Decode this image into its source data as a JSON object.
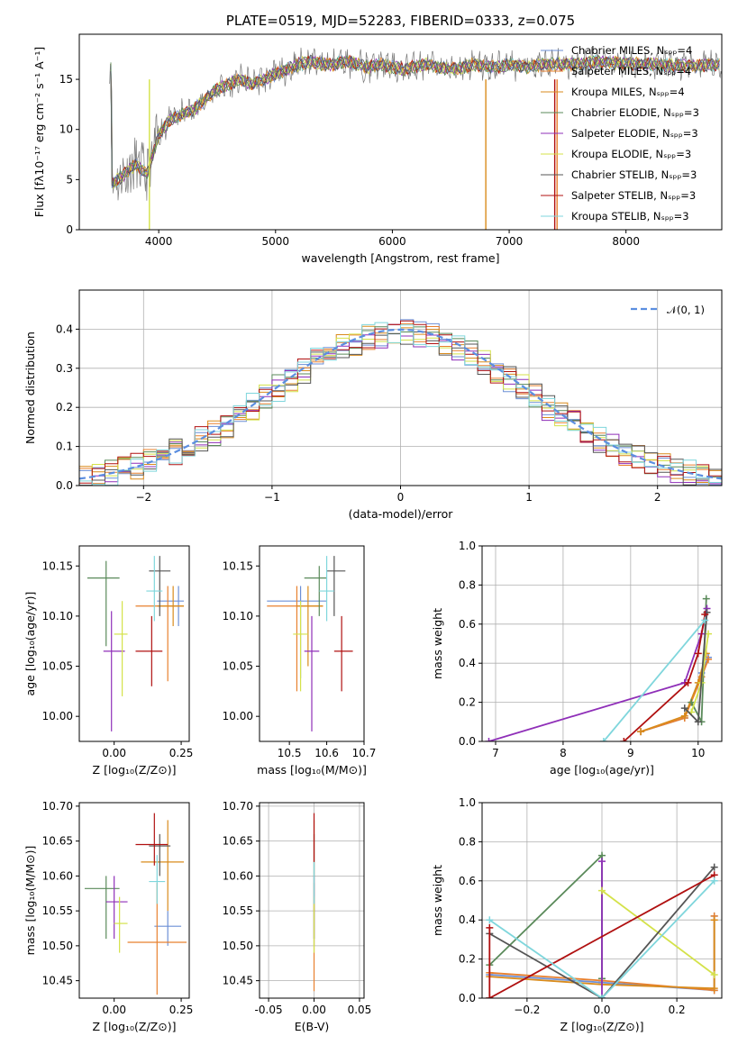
{
  "figure_title": "PLATE=0519, MJD=52283, FIBERID=0333, z=0.075",
  "model_colors": [
    "#6c8fd6",
    "#e8802e",
    "#d98b1c",
    "#5a8a5a",
    "#8f2fb8",
    "#d4e24a",
    "#555555",
    "#b01010",
    "#7fd6dc"
  ],
  "chart_data": [
    {
      "id": "spectrum",
      "type": "line",
      "title": "PLATE=0519, MJD=52283, FIBERID=0333, z=0.075",
      "xlabel": "wavelength [Angstrom, rest frame]",
      "ylabel": "Flux [fλ10⁻¹⁷ erg cm⁻² s⁻¹ A⁻¹]",
      "xlim": [
        3320,
        8820
      ],
      "ylim": [
        0,
        19.5
      ],
      "xticks": [
        4000,
        5000,
        6000,
        7000,
        8000
      ],
      "yticks": [
        0,
        5,
        10,
        15
      ],
      "grid": false,
      "legend_position": "right",
      "wavelength": [
        3600,
        3700,
        3800,
        3900,
        4000,
        4100,
        4200,
        4300,
        4400,
        4500,
        4600,
        4700,
        4800,
        4900,
        5000,
        5100,
        5200,
        5300,
        5400,
        5500,
        5600,
        5700,
        5800,
        5900,
        6000,
        6100,
        6200,
        6300,
        6400,
        6500,
        6600,
        6700,
        6800,
        6900,
        7000,
        7100,
        7200,
        7300,
        7400,
        7600,
        7800,
        8000,
        8200,
        8400,
        8600,
        8800
      ],
      "flux": [
        4.5,
        5.5,
        6.5,
        5.5,
        9.5,
        11,
        11.5,
        12,
        13,
        14,
        14.5,
        15,
        14.5,
        15,
        15.5,
        16,
        16.5,
        16.8,
        16.5,
        16.5,
        16.8,
        16.5,
        16.2,
        16.5,
        16.2,
        16,
        16.3,
        16.5,
        16.2,
        16,
        16.2,
        16.5,
        16.3,
        16.2,
        16.5,
        16.3,
        16.2,
        16.5,
        16.5,
        16.5,
        16.8,
        16.6,
        16.5,
        16.4,
        16.3,
        16.5
      ],
      "series": [
        {
          "name": "Chabrier MILES, Nₛₚₚ=4"
        },
        {
          "name": "Salpeter MILES, Nₛₚₚ=4"
        },
        {
          "name": "Kroupa MILES, Nₛₚₚ=4"
        },
        {
          "name": "Chabrier ELODIE, Nₛₚₚ=3"
        },
        {
          "name": "Salpeter ELODIE, Nₛₚₚ=3"
        },
        {
          "name": "Kroupa ELODIE, Nₛₚₚ=3"
        },
        {
          "name": "Chabrier STELIB, Nₛₚₚ=3"
        },
        {
          "name": "Salpeter STELIB, Nₛₚₚ=3"
        },
        {
          "name": "Kroupa STELIB, Nₛₚₚ=3"
        }
      ]
    },
    {
      "id": "residuals",
      "type": "line",
      "xlabel": "(data-model)/error",
      "ylabel": "Normed distribution",
      "xlim": [
        -2.5,
        2.5
      ],
      "ylim": [
        0,
        0.5
      ],
      "xticks": [
        -2,
        -1,
        0,
        1,
        2
      ],
      "yticks": [
        0.0,
        0.1,
        0.2,
        0.3,
        0.4
      ],
      "grid": true,
      "legend_position": "upper right",
      "legend_entry": "𝒩(0, 1)",
      "bin_width": 0.1
    },
    {
      "id": "age_vs_Z",
      "type": "scatter",
      "xlabel": "Z [log₁₀(Z/Z⊙)]",
      "ylabel": "age  [log₁₀(age/yr)]",
      "xlim": [
        -0.13,
        0.28
      ],
      "ylim": [
        9.975,
        10.17
      ],
      "xticks": [
        0.0,
        0.25
      ],
      "yticks": [
        10.0,
        10.05,
        10.1,
        10.15
      ],
      "grid": false,
      "points": [
        {
          "x": 0.24,
          "y": 10.115,
          "xlo": 0.16,
          "xhi": 0.26,
          "ylo": 10.09,
          "yhi": 10.13
        },
        {
          "x": 0.2,
          "y": 10.11,
          "xlo": 0.08,
          "xhi": 0.26,
          "ylo": 10.035,
          "yhi": 10.13
        },
        {
          "x": 0.22,
          "y": 10.11,
          "xlo": 0.16,
          "xhi": 0.26,
          "ylo": 10.09,
          "yhi": 10.13
        },
        {
          "x": -0.03,
          "y": 10.138,
          "xlo": -0.1,
          "xhi": 0.02,
          "ylo": 10.07,
          "yhi": 10.155
        },
        {
          "x": -0.01,
          "y": 10.065,
          "xlo": -0.04,
          "xhi": 0.04,
          "ylo": 9.985,
          "yhi": 10.105
        },
        {
          "x": 0.03,
          "y": 10.082,
          "xlo": 0.0,
          "xhi": 0.05,
          "ylo": 10.02,
          "yhi": 10.115
        },
        {
          "x": 0.17,
          "y": 10.145,
          "xlo": 0.13,
          "xhi": 0.21,
          "ylo": 10.1,
          "yhi": 10.16
        },
        {
          "x": 0.14,
          "y": 10.065,
          "xlo": 0.08,
          "xhi": 0.18,
          "ylo": 10.03,
          "yhi": 10.1
        },
        {
          "x": 0.15,
          "y": 10.125,
          "xlo": 0.12,
          "xhi": 0.18,
          "ylo": 10.095,
          "yhi": 10.16
        }
      ]
    },
    {
      "id": "age_vs_mass",
      "type": "scatter",
      "xlabel": "mass [log₁₀(M/M⊙)]",
      "ylabel": "",
      "xlim": [
        10.42,
        10.7
      ],
      "ylim": [
        9.975,
        10.17
      ],
      "xticks": [
        10.5,
        10.6,
        10.7
      ],
      "yticks": [
        10.0,
        10.05,
        10.1,
        10.15
      ],
      "grid": false,
      "points": [
        {
          "x": 10.53,
          "y": 10.115,
          "xlo": 10.44,
          "xhi": 10.6,
          "ylo": 10.038,
          "yhi": 10.13
        },
        {
          "x": 10.52,
          "y": 10.11,
          "xlo": 10.44,
          "xhi": 10.59,
          "ylo": 10.025,
          "yhi": 10.13
        },
        {
          "x": 10.55,
          "y": 10.11,
          "xlo": 10.52,
          "xhi": 10.59,
          "ylo": 10.05,
          "yhi": 10.13
        },
        {
          "x": 10.58,
          "y": 10.138,
          "xlo": 10.54,
          "xhi": 10.6,
          "ylo": 10.1,
          "yhi": 10.15
        },
        {
          "x": 10.56,
          "y": 10.065,
          "xlo": 10.54,
          "xhi": 10.58,
          "ylo": 9.985,
          "yhi": 10.1
        },
        {
          "x": 10.53,
          "y": 10.082,
          "xlo": 10.51,
          "xhi": 10.55,
          "ylo": 10.025,
          "yhi": 10.115
        },
        {
          "x": 10.62,
          "y": 10.145,
          "xlo": 10.6,
          "xhi": 10.65,
          "ylo": 10.1,
          "yhi": 10.16
        },
        {
          "x": 10.64,
          "y": 10.065,
          "xlo": 10.62,
          "xhi": 10.67,
          "ylo": 10.025,
          "yhi": 10.1
        },
        {
          "x": 10.6,
          "y": 10.125,
          "xlo": 10.58,
          "xhi": 10.62,
          "ylo": 10.095,
          "yhi": 10.16
        }
      ]
    },
    {
      "id": "weight_vs_age",
      "type": "line",
      "xlabel": "age  [log₁₀(age/yr)]",
      "ylabel": "mass weight",
      "xlim": [
        6.8,
        10.35
      ],
      "ylim": [
        0,
        1.0
      ],
      "xticks": [
        7,
        8,
        9,
        10
      ],
      "yticks": [
        0.0,
        0.2,
        0.4,
        0.6,
        0.8,
        1.0
      ],
      "grid": true,
      "series": [
        {
          "points": [
            [
              9.15,
              0.05
            ],
            [
              9.8,
              0.12
            ],
            [
              10.05,
              0.35
            ],
            [
              10.15,
              0.43
            ]
          ]
        },
        {
          "points": [
            [
              9.15,
              0.05
            ],
            [
              9.8,
              0.12
            ],
            [
              10.05,
              0.33
            ],
            [
              10.15,
              0.42
            ]
          ]
        },
        {
          "points": [
            [
              9.15,
              0.05
            ],
            [
              9.8,
              0.13
            ],
            [
              10.0,
              0.3
            ],
            [
              10.12,
              0.45
            ]
          ]
        },
        {
          "points": [
            [
              9.9,
              0.2
            ],
            [
              10.05,
              0.1
            ],
            [
              10.12,
              0.73
            ]
          ]
        },
        {
          "points": [
            [
              6.9,
              0.0
            ],
            [
              9.8,
              0.3
            ],
            [
              10.05,
              0.55
            ],
            [
              10.13,
              0.68
            ]
          ]
        },
        {
          "points": [
            [
              9.9,
              0.15
            ],
            [
              10.05,
              0.3
            ],
            [
              10.15,
              0.55
            ]
          ]
        },
        {
          "points": [
            [
              9.8,
              0.17
            ],
            [
              10.0,
              0.1
            ],
            [
              10.13,
              0.66
            ]
          ]
        },
        {
          "points": [
            [
              8.9,
              0.0
            ],
            [
              9.85,
              0.3
            ],
            [
              10.0,
              0.45
            ],
            [
              10.1,
              0.65
            ]
          ]
        },
        {
          "points": [
            [
              8.6,
              0.0
            ],
            [
              10.1,
              0.62
            ]
          ]
        }
      ]
    },
    {
      "id": "mass_vs_Z",
      "type": "scatter",
      "xlabel": "Z [log₁₀(Z/Z⊙)]",
      "ylabel": "mass [log₁₀(M/M⊙)]",
      "xlim": [
        -0.13,
        0.28
      ],
      "ylim": [
        10.425,
        10.705
      ],
      "xticks": [
        0.0,
        0.25
      ],
      "yticks": [
        10.45,
        10.5,
        10.55,
        10.6,
        10.65,
        10.7
      ],
      "grid": false,
      "points": [
        {
          "x": 0.2,
          "y": 10.528,
          "xlo": 0.15,
          "xhi": 0.25,
          "ylo": 10.5,
          "yhi": 10.55
        },
        {
          "x": 0.16,
          "y": 10.505,
          "xlo": 0.05,
          "xhi": 0.27,
          "ylo": 10.43,
          "yhi": 10.59
        },
        {
          "x": 0.2,
          "y": 10.62,
          "xlo": 0.1,
          "xhi": 0.26,
          "ylo": 10.55,
          "yhi": 10.68
        },
        {
          "x": -0.03,
          "y": 10.582,
          "xlo": -0.11,
          "xhi": 0.02,
          "ylo": 10.51,
          "yhi": 10.6
        },
        {
          "x": 0.0,
          "y": 10.563,
          "xlo": -0.03,
          "xhi": 0.05,
          "ylo": 10.51,
          "yhi": 10.6
        },
        {
          "x": 0.02,
          "y": 10.532,
          "xlo": 0.0,
          "xhi": 0.05,
          "ylo": 10.49,
          "yhi": 10.57
        },
        {
          "x": 0.17,
          "y": 10.643,
          "xlo": 0.13,
          "xhi": 0.21,
          "ylo": 10.6,
          "yhi": 10.66
        },
        {
          "x": 0.15,
          "y": 10.645,
          "xlo": 0.08,
          "xhi": 0.2,
          "ylo": 10.615,
          "yhi": 10.69
        },
        {
          "x": 0.16,
          "y": 10.592,
          "xlo": 0.13,
          "xhi": 0.19,
          "ylo": 10.56,
          "yhi": 10.63
        }
      ]
    },
    {
      "id": "mass_vs_ebv",
      "type": "scatter",
      "xlabel": "E(B-V)",
      "ylabel": "",
      "xlim": [
        -0.06,
        0.055
      ],
      "ylim": [
        10.425,
        10.705
      ],
      "xticks": [
        -0.05,
        0.0,
        0.05
      ],
      "yticks": [
        10.45,
        10.5,
        10.55,
        10.6,
        10.65,
        10.7
      ],
      "grid": true,
      "points": [
        {
          "x": 0.0,
          "y": 10.528,
          "ylo": 10.5,
          "yhi": 10.55
        },
        {
          "x": 0.0,
          "y": 10.505,
          "ylo": 10.435,
          "yhi": 10.59
        },
        {
          "x": 0.0,
          "y": 10.62,
          "ylo": 10.55,
          "yhi": 10.68
        },
        {
          "x": 0.0,
          "y": 10.582,
          "ylo": 10.51,
          "yhi": 10.6
        },
        {
          "x": 0.0,
          "y": 10.563,
          "ylo": 10.51,
          "yhi": 10.6
        },
        {
          "x": 0.0,
          "y": 10.532,
          "ylo": 10.49,
          "yhi": 10.57
        },
        {
          "x": 0.0,
          "y": 10.643,
          "ylo": 10.6,
          "yhi": 10.66
        },
        {
          "x": 0.0,
          "y": 10.645,
          "ylo": 10.62,
          "yhi": 10.69
        },
        {
          "x": 0.0,
          "y": 10.592,
          "ylo": 10.56,
          "yhi": 10.62
        }
      ]
    },
    {
      "id": "weight_vs_Z",
      "type": "line",
      "xlabel": "Z [log₁₀(Z/Z⊙)]",
      "ylabel": "mass weight",
      "xlim": [
        -0.32,
        0.32
      ],
      "ylim": [
        0,
        1.0
      ],
      "xticks": [
        -0.2,
        0.0,
        0.2
      ],
      "yticks": [
        0.0,
        0.2,
        0.4,
        0.6,
        0.8,
        1.0
      ],
      "grid": true,
      "series": [
        {
          "points": [
            [
              -0.3,
              0.12
            ],
            [
              0.0,
              0.08
            ],
            [
              0.3,
              0.04
            ],
            [
              0.3,
              0.42
            ]
          ]
        },
        {
          "points": [
            [
              -0.3,
              0.13
            ],
            [
              0.0,
              0.09
            ],
            [
              0.3,
              0.04
            ],
            [
              0.3,
              0.42
            ]
          ]
        },
        {
          "points": [
            [
              -0.3,
              0.11
            ],
            [
              0.0,
              0.07
            ],
            [
              0.3,
              0.05
            ],
            [
              0.3,
              0.4
            ]
          ]
        },
        {
          "points": [
            [
              -0.3,
              0.17
            ],
            [
              0.0,
              0.73
            ],
            [
              0.0,
              0.1
            ]
          ]
        },
        {
          "points": [
            [
              0.0,
              0.0
            ],
            [
              0.0,
              0.7
            ]
          ]
        },
        {
          "points": [
            [
              0.0,
              0.55
            ],
            [
              0.3,
              0.12
            ]
          ]
        },
        {
          "points": [
            [
              -0.3,
              0.33
            ],
            [
              0.0,
              0.0
            ],
            [
              0.3,
              0.67
            ]
          ]
        },
        {
          "points": [
            [
              -0.3,
              0.0
            ],
            [
              -0.3,
              0.36
            ],
            [
              -0.3,
              0.0
            ],
            [
              0.3,
              0.63
            ]
          ]
        },
        {
          "points": [
            [
              -0.3,
              0.4
            ],
            [
              0.0,
              0.0
            ],
            [
              0.3,
              0.6
            ]
          ]
        }
      ]
    }
  ]
}
